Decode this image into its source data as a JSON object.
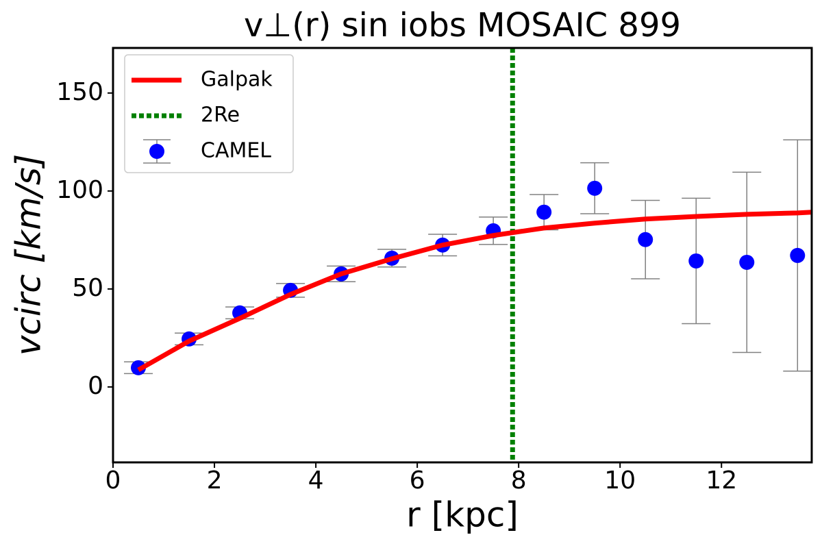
{
  "chart_data": {
    "type": "errorbar",
    "title": "v⊥(r) sin iobs MOSAIC 899",
    "xlabel": "r [kpc]",
    "ylabel": "vcirc [km/s]",
    "xlim": [
      0,
      13.78
    ],
    "ylim": [
      -38.5,
      173
    ],
    "xticks": [
      0,
      2,
      4,
      6,
      8,
      10,
      12
    ],
    "yticks": [
      0,
      50,
      100,
      150
    ],
    "legend": "upper left",
    "series": [
      {
        "name": "Galpak",
        "kind": "line",
        "color": "#ff0000",
        "x": [
          0.5,
          1.5,
          2.5,
          3.5,
          4.5,
          5.5,
          6.5,
          7.5,
          8.5,
          9.5,
          10.5,
          11.5,
          12.5,
          13.5,
          13.78
        ],
        "values": [
          8.7,
          23.4,
          35,
          47.2,
          57.7,
          65.4,
          72.4,
          77.3,
          81.1,
          83.6,
          85.7,
          87,
          88.1,
          88.8,
          89.2
        ]
      },
      {
        "name": "2Re",
        "kind": "vline",
        "color": "#008000",
        "x": 7.88
      },
      {
        "name": "CAMEL",
        "kind": "scatter",
        "color": "#0000ff",
        "error_color": "#808080",
        "x": [
          0.5,
          1.5,
          2.5,
          3.5,
          4.5,
          5.5,
          6.5,
          7.5,
          8.5,
          9.5,
          10.5,
          11.5,
          12.5,
          13.5
        ],
        "values": [
          9.8,
          24.5,
          37.8,
          49.3,
          57.7,
          65.7,
          72.4,
          79.7,
          89.2,
          101.4,
          75.2,
          64.3,
          63.6,
          67.1
        ],
        "errors": [
          3,
          3,
          3,
          3.5,
          4,
          4.5,
          5.5,
          7,
          9,
          13,
          20,
          32,
          46,
          59
        ]
      }
    ]
  }
}
